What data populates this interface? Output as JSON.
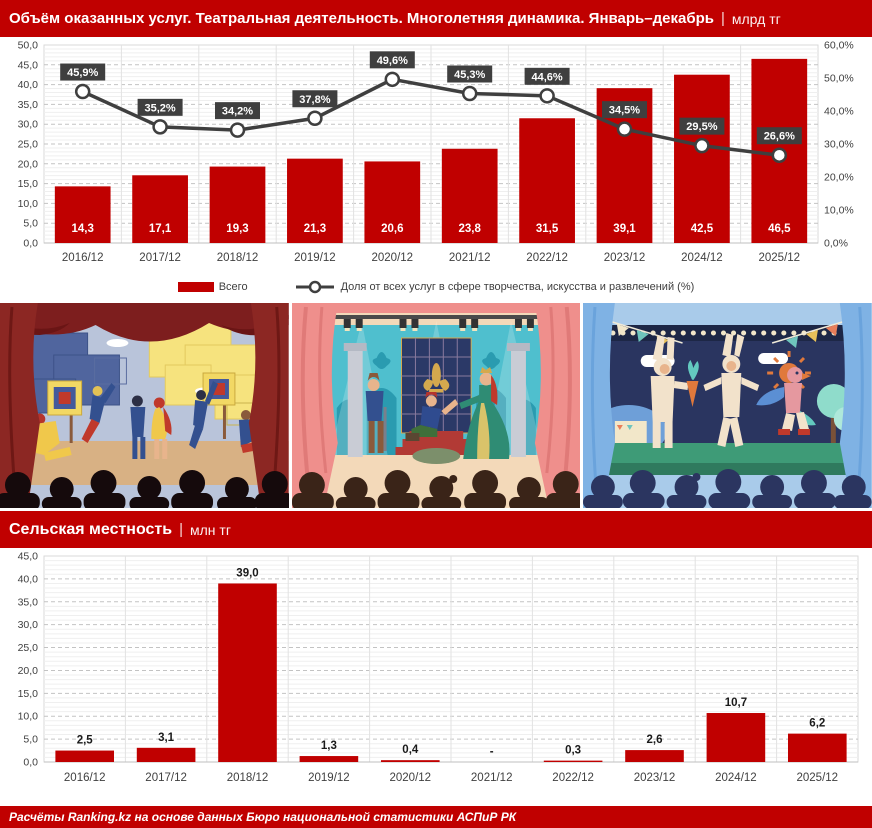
{
  "header": {
    "title": "Объём оказанных услуг. Театральная деятельность. Многолетняя динамика. Январь–декабрь",
    "separator": "|",
    "unit": "млрд тг"
  },
  "section2": {
    "title": "Сельская местность",
    "separator": "|",
    "unit": "млн тг"
  },
  "footer": {
    "text": "Расчёты Ranking.kz на основе данных Бюро национальной статистики АСПиР РК"
  },
  "colors": {
    "red": "#c00000",
    "line": "#3f3f3f",
    "label_box": "#3f3f3f",
    "axis_text": "#404040"
  },
  "chart_data": [
    {
      "type": "bar",
      "subtype": "bar+line, dual axis",
      "categories": [
        "2016/12",
        "2017/12",
        "2018/12",
        "2019/12",
        "2020/12",
        "2021/12",
        "2022/12",
        "2023/12",
        "2024/12",
        "2025/12"
      ],
      "series": [
        {
          "name": "Всего",
          "type": "bar",
          "axis": "left",
          "color": "#c00000",
          "values": [
            14.3,
            17.1,
            19.3,
            21.3,
            20.6,
            23.8,
            31.5,
            39.1,
            42.5,
            46.5
          ],
          "labels": [
            "14,3",
            "17,1",
            "19,3",
            "21,3",
            "20,6",
            "23,8",
            "31,5",
            "39,1",
            "42,5",
            "46,5"
          ]
        },
        {
          "name": "Доля от всех услуг в сфере творчества, искусства и развлечений (%)",
          "type": "line",
          "axis": "right",
          "color": "#3f3f3f",
          "values": [
            45.9,
            35.2,
            34.2,
            37.8,
            49.6,
            45.3,
            44.6,
            34.5,
            29.5,
            26.6
          ],
          "labels": [
            "45,9%",
            "35,2%",
            "34,2%",
            "37,8%",
            "49,6%",
            "45,3%",
            "44,6%",
            "34,5%",
            "29,5%",
            "26,6%"
          ]
        }
      ],
      "left_axis": {
        "min": 0,
        "max": 50,
        "step": 5,
        "ticks": [
          "0,0",
          "5,0",
          "10,0",
          "15,0",
          "20,0",
          "25,0",
          "30,0",
          "35,0",
          "40,0",
          "45,0",
          "50,0"
        ]
      },
      "right_axis": {
        "min": 0,
        "max": 60,
        "step": 10,
        "ticks": [
          "0,0%",
          "10,0%",
          "20,0%",
          "30,0%",
          "40,0%",
          "50,0%",
          "60,0%"
        ]
      },
      "grid": "minor solid + major dashed horizontal, vertical category separators",
      "legend_position": "bottom-center",
      "bar_label_position": "inside-bottom-white"
    },
    {
      "type": "bar",
      "categories": [
        "2016/12",
        "2017/12",
        "2018/12",
        "2019/12",
        "2020/12",
        "2021/12",
        "2022/12",
        "2023/12",
        "2024/12",
        "2025/12"
      ],
      "values": [
        2.5,
        3.1,
        39.0,
        1.3,
        0.4,
        null,
        0.3,
        2.6,
        10.7,
        6.2
      ],
      "labels": [
        "2,5",
        "3,1",
        "39,0",
        "1,3",
        "0,4",
        "-",
        "0,3",
        "2,6",
        "10,7",
        "6,2"
      ],
      "left_axis": {
        "min": 0,
        "max": 45,
        "step": 5,
        "ticks": [
          "0,0",
          "5,0",
          "10,0",
          "15,0",
          "20,0",
          "25,0",
          "30,0",
          "35,0",
          "40,0",
          "45,0"
        ]
      },
      "grid": "minor solid + major dashed horizontal, vertical category separators",
      "legend_position": "none",
      "bar_label_position": "above-black"
    }
  ]
}
